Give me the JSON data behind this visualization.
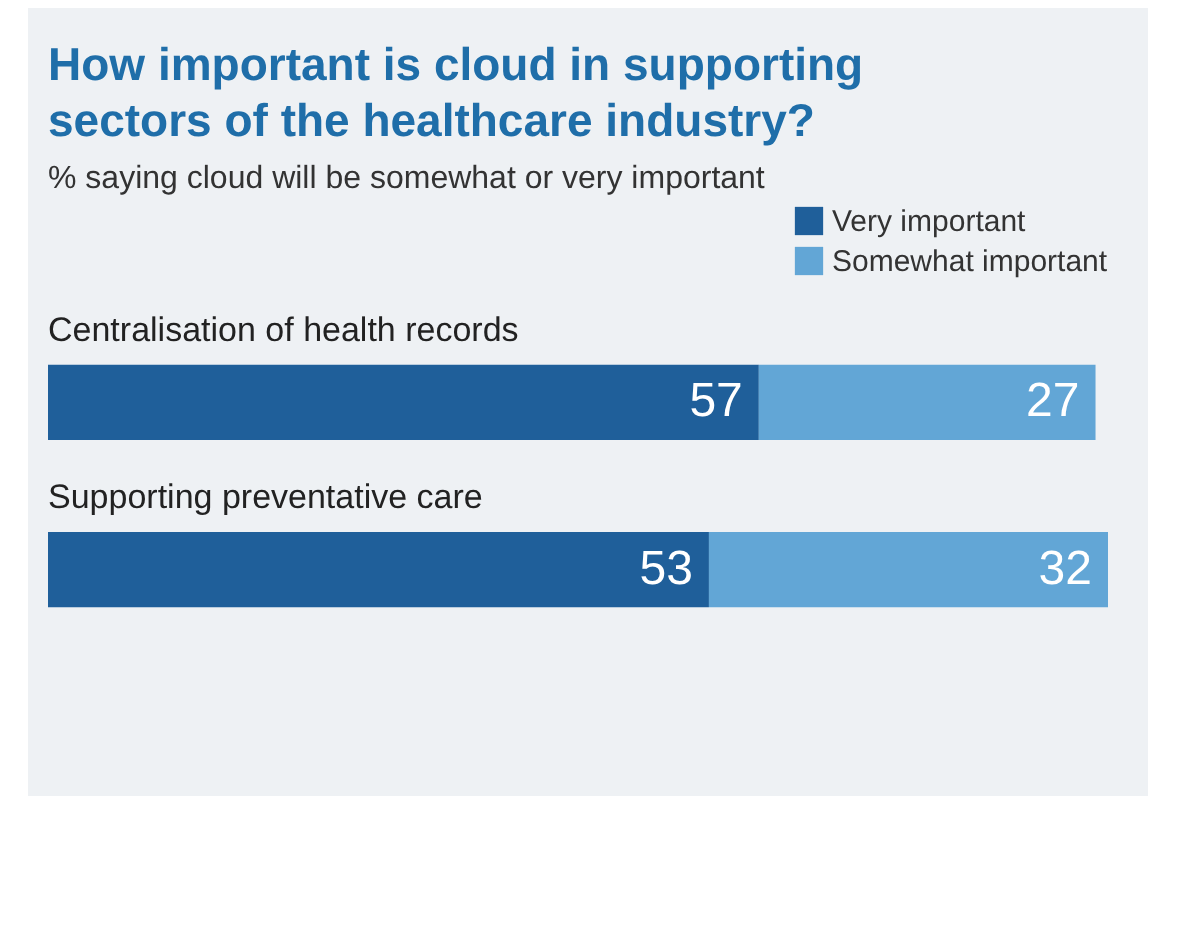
{
  "chart_data": {
    "type": "bar",
    "orientation": "horizontal",
    "stacked": true,
    "title": "How important is cloud in supporting sectors of the healthcare industry?",
    "subtitle": "% saying cloud will be somewhat or very important",
    "categories": [
      "Centralisation of health records",
      "Supporting preventative care"
    ],
    "series": [
      {
        "name": "Very important",
        "color": "#1f5f9a",
        "values": [
          57,
          53
        ]
      },
      {
        "name": "Somewhat important",
        "color": "#62a6d6",
        "values": [
          27,
          32
        ]
      }
    ],
    "data_labels": true,
    "legend": "top right"
  }
}
